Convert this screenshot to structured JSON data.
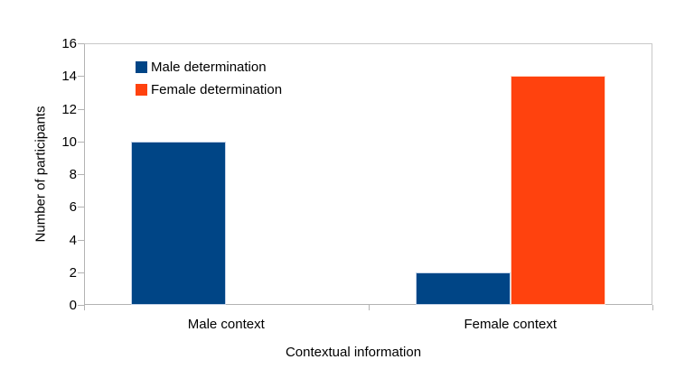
{
  "chart_data": {
    "type": "bar",
    "categories": [
      "Male context",
      "Female context"
    ],
    "series": [
      {
        "name": "Male determination",
        "color": "#004586",
        "border_color": "#c5d3e8",
        "values": [
          10,
          2
        ]
      },
      {
        "name": "Female determination",
        "color": "#ff420e",
        "border_color": "#ffd9c9",
        "values": [
          0,
          14
        ]
      }
    ],
    "title": "",
    "xlabel": "Contextual information",
    "ylabel": "Number of participants",
    "ylim": [
      0,
      16
    ],
    "ytick_step": 2,
    "ytick_labels": [
      "0",
      "2",
      "4",
      "6",
      "8",
      "10",
      "12",
      "14",
      "16"
    ],
    "grid": false,
    "legend_position": "top-left-inside",
    "background_color": "#ffffff",
    "axis_line_color": "#b3b3b3",
    "text_color": "#000000"
  }
}
